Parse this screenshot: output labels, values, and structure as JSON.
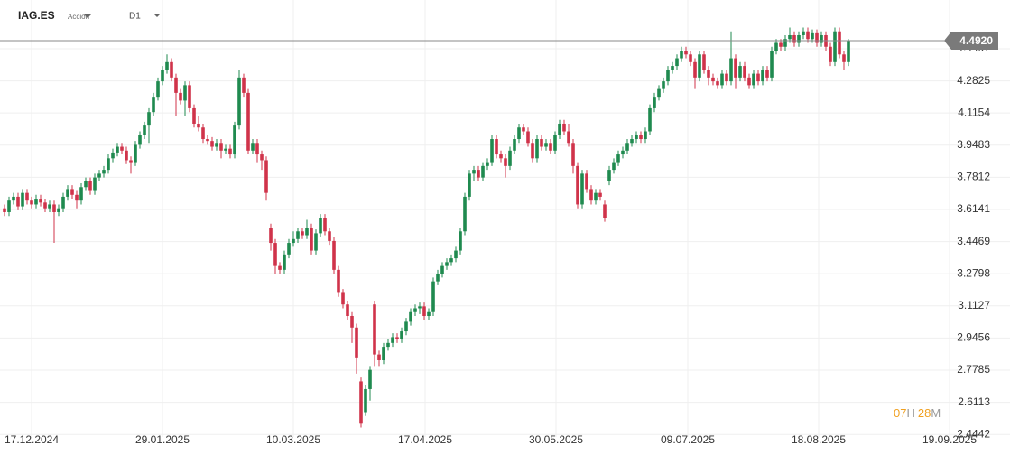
{
  "symbol": "IAG.ES",
  "instrument_type": "Acción",
  "timeframe": "D1",
  "countdown": [
    "07",
    "H",
    "28",
    "M"
  ],
  "chart_data": {
    "type": "candlestick",
    "grid": true,
    "up_color": "#1f8a4f",
    "down_color": "#d0334a",
    "current_price": {
      "value": 4.492,
      "label": "4.4920"
    },
    "xlim": [
      -1,
      222.8
    ],
    "ylim": [
      2.431,
      4.703
    ],
    "xticks": [
      {
        "value": 6,
        "label": "17.12.2024"
      },
      {
        "value": 35,
        "label": "29.01.2025"
      },
      {
        "value": 64,
        "label": "10.03.2025"
      },
      {
        "value": 93.2,
        "label": "17.04.2025"
      },
      {
        "value": 122.2,
        "label": "30.05.2025"
      },
      {
        "value": 151.4,
        "label": "09.07.2025"
      },
      {
        "value": 180.4,
        "label": "18.08.2025"
      },
      {
        "value": 209.4,
        "label": "19.09.2025"
      }
    ],
    "yticks": [
      2.4442,
      2.6113,
      2.7785,
      2.9456,
      3.1127,
      3.2798,
      3.4469,
      3.6141,
      3.7812,
      3.9483,
      4.1154,
      4.2825,
      4.4497
    ],
    "ohlc": [
      [
        3.62,
        3.64,
        3.58,
        3.6
      ],
      [
        3.6,
        3.68,
        3.58,
        3.66
      ],
      [
        3.66,
        3.7,
        3.64,
        3.68
      ],
      [
        3.68,
        3.7,
        3.61,
        3.63
      ],
      [
        3.63,
        3.72,
        3.61,
        3.7
      ],
      [
        3.7,
        3.72,
        3.64,
        3.66
      ],
      [
        3.66,
        3.68,
        3.62,
        3.64
      ],
      [
        3.64,
        3.69,
        3.62,
        3.67
      ],
      [
        3.67,
        3.69,
        3.63,
        3.65
      ],
      [
        3.65,
        3.67,
        3.6,
        3.62
      ],
      [
        3.62,
        3.66,
        3.6,
        3.64
      ],
      [
        3.64,
        3.66,
        3.44,
        3.6
      ],
      [
        3.6,
        3.64,
        3.58,
        3.62
      ],
      [
        3.62,
        3.7,
        3.6,
        3.68
      ],
      [
        3.68,
        3.74,
        3.66,
        3.72
      ],
      [
        3.72,
        3.74,
        3.67,
        3.69
      ],
      [
        3.69,
        3.71,
        3.62,
        3.66
      ],
      [
        3.66,
        3.75,
        3.64,
        3.73
      ],
      [
        3.73,
        3.78,
        3.71,
        3.76
      ],
      [
        3.76,
        3.78,
        3.69,
        3.71
      ],
      [
        3.71,
        3.8,
        3.69,
        3.78
      ],
      [
        3.78,
        3.82,
        3.76,
        3.8
      ],
      [
        3.8,
        3.84,
        3.78,
        3.82
      ],
      [
        3.82,
        3.9,
        3.8,
        3.88
      ],
      [
        3.88,
        3.93,
        3.86,
        3.91
      ],
      [
        3.91,
        3.96,
        3.89,
        3.94
      ],
      [
        3.94,
        3.96,
        3.9,
        3.92
      ],
      [
        3.92,
        3.94,
        3.85,
        3.87
      ],
      [
        3.87,
        3.89,
        3.8,
        3.86
      ],
      [
        3.86,
        3.97,
        3.84,
        3.95
      ],
      [
        3.95,
        4.02,
        3.93,
        4.0
      ],
      [
        4.0,
        4.07,
        3.98,
        4.05
      ],
      [
        4.05,
        4.14,
        3.96,
        4.12
      ],
      [
        4.12,
        4.22,
        4.1,
        4.2
      ],
      [
        4.2,
        4.3,
        4.18,
        4.28
      ],
      [
        4.28,
        4.36,
        4.26,
        4.34
      ],
      [
        4.34,
        4.42,
        4.32,
        4.38
      ],
      [
        4.38,
        4.4,
        4.28,
        4.3
      ],
      [
        4.3,
        4.32,
        4.1,
        4.22
      ],
      [
        4.22,
        4.24,
        4.16,
        4.18
      ],
      [
        4.18,
        4.28,
        4.1,
        4.26
      ],
      [
        4.26,
        4.28,
        4.12,
        4.14
      ],
      [
        4.14,
        4.16,
        4.04,
        4.06
      ],
      [
        4.06,
        4.1,
        4.02,
        4.04
      ],
      [
        4.04,
        4.06,
        3.96,
        3.98
      ],
      [
        3.98,
        4.0,
        3.95,
        3.97
      ],
      [
        3.97,
        3.99,
        3.92,
        3.94
      ],
      [
        3.94,
        3.98,
        3.92,
        3.96
      ],
      [
        3.96,
        3.98,
        3.88,
        3.92
      ],
      [
        3.92,
        3.95,
        3.9,
        3.93
      ],
      [
        3.93,
        3.95,
        3.88,
        3.9
      ],
      [
        3.9,
        4.07,
        3.88,
        4.05
      ],
      [
        4.05,
        4.34,
        4.03,
        4.3
      ],
      [
        4.3,
        4.32,
        4.2,
        4.22
      ],
      [
        4.22,
        4.24,
        3.9,
        3.92
      ],
      [
        3.92,
        3.98,
        3.9,
        3.96
      ],
      [
        3.96,
        3.98,
        3.86,
        3.9
      ],
      [
        3.9,
        3.92,
        3.82,
        3.87
      ],
      [
        3.87,
        3.89,
        3.66,
        3.7
      ],
      [
        3.52,
        3.54,
        3.4,
        3.44
      ],
      [
        3.44,
        3.46,
        3.28,
        3.32
      ],
      [
        3.32,
        3.34,
        3.28,
        3.3
      ],
      [
        3.3,
        3.4,
        3.28,
        3.38
      ],
      [
        3.38,
        3.46,
        3.36,
        3.44
      ],
      [
        3.44,
        3.5,
        3.42,
        3.46
      ],
      [
        3.46,
        3.52,
        3.44,
        3.5
      ],
      [
        3.5,
        3.52,
        3.46,
        3.48
      ],
      [
        3.48,
        3.56,
        3.46,
        3.52
      ],
      [
        3.52,
        3.54,
        3.38,
        3.4
      ],
      [
        3.4,
        3.51,
        3.38,
        3.49
      ],
      [
        3.49,
        3.59,
        3.47,
        3.57
      ],
      [
        3.57,
        3.59,
        3.48,
        3.5
      ],
      [
        3.5,
        3.52,
        3.43,
        3.45
      ],
      [
        3.45,
        3.47,
        3.28,
        3.3
      ],
      [
        3.3,
        3.32,
        3.16,
        3.18
      ],
      [
        3.18,
        3.2,
        3.1,
        3.12
      ],
      [
        3.12,
        3.14,
        3.04,
        3.06
      ],
      [
        3.06,
        3.08,
        2.92,
        3.0
      ],
      [
        3.0,
        3.02,
        2.76,
        2.84
      ],
      [
        2.72,
        2.74,
        2.48,
        2.5
      ],
      [
        2.56,
        2.7,
        2.54,
        2.68
      ],
      [
        2.68,
        2.8,
        2.62,
        2.78
      ],
      [
        3.12,
        3.14,
        2.8,
        2.86
      ],
      [
        2.86,
        2.88,
        2.8,
        2.83
      ],
      [
        2.83,
        2.92,
        2.81,
        2.9
      ],
      [
        2.9,
        2.94,
        2.88,
        2.92
      ],
      [
        2.92,
        2.97,
        2.9,
        2.95
      ],
      [
        2.95,
        2.97,
        2.92,
        2.94
      ],
      [
        2.94,
        3.0,
        2.92,
        2.98
      ],
      [
        2.98,
        3.05,
        2.96,
        3.03
      ],
      [
        3.03,
        3.1,
        3.01,
        3.08
      ],
      [
        3.08,
        3.12,
        3.06,
        3.1
      ],
      [
        3.1,
        3.13,
        3.07,
        3.11
      ],
      [
        3.11,
        3.13,
        3.04,
        3.06
      ],
      [
        3.06,
        3.1,
        3.04,
        3.08
      ],
      [
        3.08,
        3.26,
        3.06,
        3.24
      ],
      [
        3.24,
        3.3,
        3.22,
        3.28
      ],
      [
        3.28,
        3.34,
        3.26,
        3.32
      ],
      [
        3.32,
        3.36,
        3.3,
        3.34
      ],
      [
        3.34,
        3.38,
        3.32,
        3.36
      ],
      [
        3.36,
        3.42,
        3.34,
        3.4
      ],
      [
        3.4,
        3.52,
        3.38,
        3.5
      ],
      [
        3.5,
        3.7,
        3.48,
        3.68
      ],
      [
        3.68,
        3.82,
        3.66,
        3.8
      ],
      [
        3.8,
        3.84,
        3.76,
        3.82
      ],
      [
        3.82,
        3.84,
        3.76,
        3.78
      ],
      [
        3.78,
        3.86,
        3.76,
        3.84
      ],
      [
        3.84,
        3.88,
        3.82,
        3.86
      ],
      [
        3.86,
        4.0,
        3.84,
        3.98
      ],
      [
        3.98,
        4.0,
        3.88,
        3.9
      ],
      [
        3.9,
        3.92,
        3.86,
        3.88
      ],
      [
        3.88,
        3.9,
        3.78,
        3.84
      ],
      [
        3.84,
        3.94,
        3.82,
        3.92
      ],
      [
        3.92,
        4.0,
        3.9,
        3.98
      ],
      [
        3.98,
        4.06,
        3.96,
        4.04
      ],
      [
        4.04,
        4.06,
        4.0,
        4.02
      ],
      [
        4.02,
        4.04,
        3.94,
        3.96
      ],
      [
        3.96,
        3.98,
        3.86,
        3.88
      ],
      [
        3.88,
        4.0,
        3.86,
        3.98
      ],
      [
        3.98,
        4.0,
        3.92,
        3.94
      ],
      [
        3.94,
        3.98,
        3.92,
        3.96
      ],
      [
        3.96,
        3.98,
        3.9,
        3.92
      ],
      [
        3.92,
        4.02,
        3.9,
        4.0
      ],
      [
        4.0,
        4.08,
        3.98,
        4.06
      ],
      [
        4.06,
        4.08,
        4.0,
        4.02
      ],
      [
        4.02,
        4.06,
        3.94,
        3.96
      ],
      [
        3.96,
        3.98,
        3.8,
        3.84
      ],
      [
        3.84,
        3.86,
        3.62,
        3.64
      ],
      [
        3.64,
        3.82,
        3.62,
        3.8
      ],
      [
        3.8,
        3.82,
        3.7,
        3.72
      ],
      [
        3.72,
        3.74,
        3.64,
        3.66
      ],
      [
        3.66,
        3.72,
        3.64,
        3.7
      ],
      [
        3.7,
        3.72,
        3.66,
        3.68
      ],
      [
        3.64,
        3.66,
        3.55,
        3.57
      ],
      [
        3.76,
        3.84,
        3.74,
        3.82
      ],
      [
        3.82,
        3.88,
        3.8,
        3.86
      ],
      [
        3.86,
        3.92,
        3.84,
        3.9
      ],
      [
        3.9,
        3.94,
        3.88,
        3.92
      ],
      [
        3.92,
        3.98,
        3.9,
        3.96
      ],
      [
        3.96,
        4.0,
        3.94,
        3.98
      ],
      [
        3.98,
        4.02,
        3.96,
        4.0
      ],
      [
        4.0,
        4.02,
        3.96,
        3.98
      ],
      [
        3.98,
        4.04,
        3.96,
        4.02
      ],
      [
        4.02,
        4.16,
        4.0,
        4.14
      ],
      [
        4.14,
        4.22,
        4.12,
        4.2
      ],
      [
        4.2,
        4.26,
        4.18,
        4.24
      ],
      [
        4.24,
        4.3,
        4.22,
        4.28
      ],
      [
        4.28,
        4.36,
        4.26,
        4.34
      ],
      [
        4.34,
        4.38,
        4.32,
        4.36
      ],
      [
        4.36,
        4.42,
        4.34,
        4.4
      ],
      [
        4.4,
        4.46,
        4.38,
        4.44
      ],
      [
        4.44,
        4.46,
        4.4,
        4.42
      ],
      [
        4.42,
        4.44,
        4.36,
        4.38
      ],
      [
        4.38,
        4.4,
        4.24,
        4.3
      ],
      [
        4.3,
        4.44,
        4.28,
        4.42
      ],
      [
        4.42,
        4.44,
        4.32,
        4.34
      ],
      [
        4.34,
        4.36,
        4.26,
        4.3
      ],
      [
        4.3,
        4.32,
        4.26,
        4.28
      ],
      [
        4.28,
        4.3,
        4.24,
        4.26
      ],
      [
        4.26,
        4.34,
        4.24,
        4.32
      ],
      [
        4.32,
        4.34,
        4.26,
        4.28
      ],
      [
        4.28,
        4.54,
        4.26,
        4.4
      ],
      [
        4.4,
        4.42,
        4.24,
        4.3
      ],
      [
        4.3,
        4.38,
        4.28,
        4.36
      ],
      [
        4.36,
        4.38,
        4.28,
        4.3
      ],
      [
        4.3,
        4.32,
        4.24,
        4.26
      ],
      [
        4.26,
        4.34,
        4.24,
        4.32
      ],
      [
        4.32,
        4.34,
        4.26,
        4.28
      ],
      [
        4.28,
        4.36,
        4.26,
        4.34
      ],
      [
        4.34,
        4.36,
        4.28,
        4.3
      ],
      [
        4.3,
        4.46,
        4.28,
        4.44
      ],
      [
        4.44,
        4.5,
        4.42,
        4.48
      ],
      [
        4.48,
        4.5,
        4.44,
        4.46
      ],
      [
        4.46,
        4.52,
        4.44,
        4.5
      ],
      [
        4.5,
        4.56,
        4.48,
        4.52
      ],
      [
        4.52,
        4.54,
        4.46,
        4.48
      ],
      [
        4.48,
        4.54,
        4.46,
        4.52
      ],
      [
        4.52,
        4.56,
        4.5,
        4.54
      ],
      [
        4.54,
        4.56,
        4.48,
        4.5
      ],
      [
        4.5,
        4.55,
        4.48,
        4.53
      ],
      [
        4.53,
        4.55,
        4.46,
        4.48
      ],
      [
        4.48,
        4.54,
        4.46,
        4.52
      ],
      [
        4.52,
        4.54,
        4.44,
        4.46
      ],
      [
        4.46,
        4.48,
        4.36,
        4.38
      ],
      [
        4.38,
        4.56,
        4.36,
        4.54
      ],
      [
        4.54,
        4.56,
        4.4,
        4.42
      ],
      [
        4.42,
        4.44,
        4.34,
        4.38
      ],
      [
        4.38,
        4.5,
        4.36,
        4.492
      ]
    ]
  }
}
